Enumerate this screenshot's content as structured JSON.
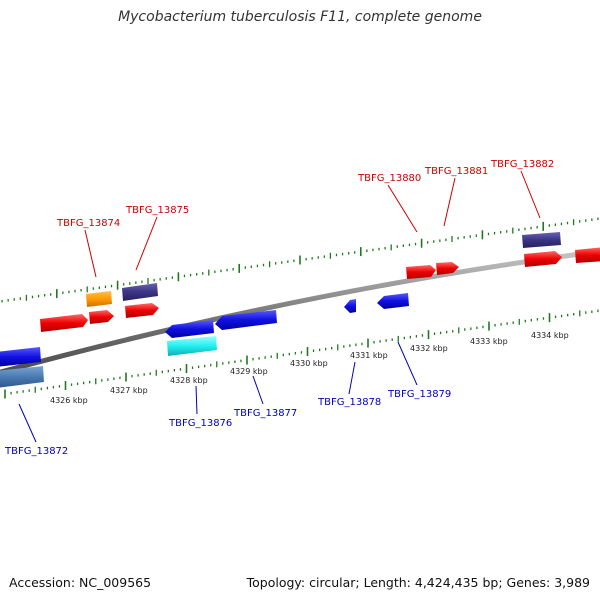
{
  "title": "Mycobacterium tuberculosis F11, complete genome",
  "footer": {
    "accession": "Accession: NC_009565",
    "summary": "Topology: circular; Length: 4,424,435 bp; Genes: 3,989"
  },
  "colors": {
    "backbone": "#7a7a7a",
    "ticks": "#1f7a1f",
    "forward_label": "#cc0000",
    "reverse_label": "#0000bb"
  },
  "scale_labels": [
    "4326 kbp",
    "4327 kbp",
    "4328 kbp",
    "4329 kbp",
    "4330 kbp",
    "4331 kbp",
    "4332 kbp",
    "4333 kbp",
    "4334 kbp"
  ],
  "forward_gene_labels": [
    "TBFG_13874",
    "TBFG_13875",
    "TBFG_13880",
    "TBFG_13881",
    "TBFG_13882"
  ],
  "reverse_gene_labels": [
    "TBFG_13872",
    "TBFG_13876",
    "TBFG_13877",
    "TBFG_13878",
    "TBFG_13879"
  ]
}
